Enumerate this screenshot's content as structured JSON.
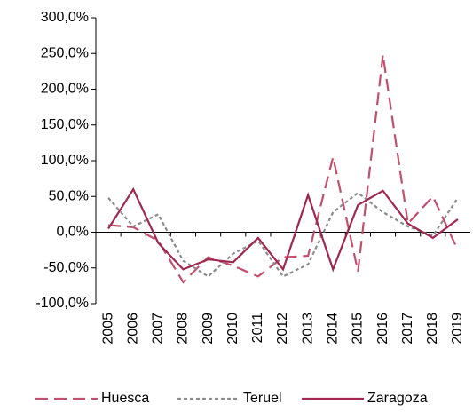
{
  "chart_data": {
    "type": "line",
    "categories": [
      "2005",
      "2006",
      "2007",
      "2008",
      "2009",
      "2010",
      "2011",
      "2012",
      "2013",
      "2014",
      "2015",
      "2016",
      "2017",
      "2018",
      "2019"
    ],
    "series": [
      {
        "name": "Huesca",
        "color": "#c0506e",
        "values": [
          10,
          7,
          -12,
          -70,
          -35,
          -47,
          -62,
          -35,
          -33,
          105,
          -55,
          248,
          12,
          50,
          -25
        ]
      },
      {
        "name": "Teruel",
        "color": "#8c8c8c",
        "values": [
          48,
          8,
          25,
          -40,
          -62,
          -30,
          -12,
          -62,
          -45,
          28,
          55,
          28,
          8,
          -5,
          48
        ]
      },
      {
        "name": "Zaragoza",
        "color": "#a0274f",
        "values": [
          5,
          60,
          -15,
          -52,
          -38,
          -42,
          -8,
          -52,
          52,
          -52,
          38,
          58,
          12,
          -8,
          18
        ]
      }
    ],
    "ylim": [
      -100,
      300
    ],
    "yticks": [
      {
        "value": -100,
        "label": "-100,0%"
      },
      {
        "value": -50,
        "label": "-50,0%"
      },
      {
        "value": 0,
        "label": "0,0%"
      },
      {
        "value": 50,
        "label": "50,0%"
      },
      {
        "value": 100,
        "label": "100,0%"
      },
      {
        "value": 150,
        "label": "150,0%"
      },
      {
        "value": 200,
        "label": "200,0%"
      },
      {
        "value": 250,
        "label": "250,0%"
      },
      {
        "value": 300,
        "label": "300,0%"
      }
    ],
    "legend": "bottom"
  }
}
